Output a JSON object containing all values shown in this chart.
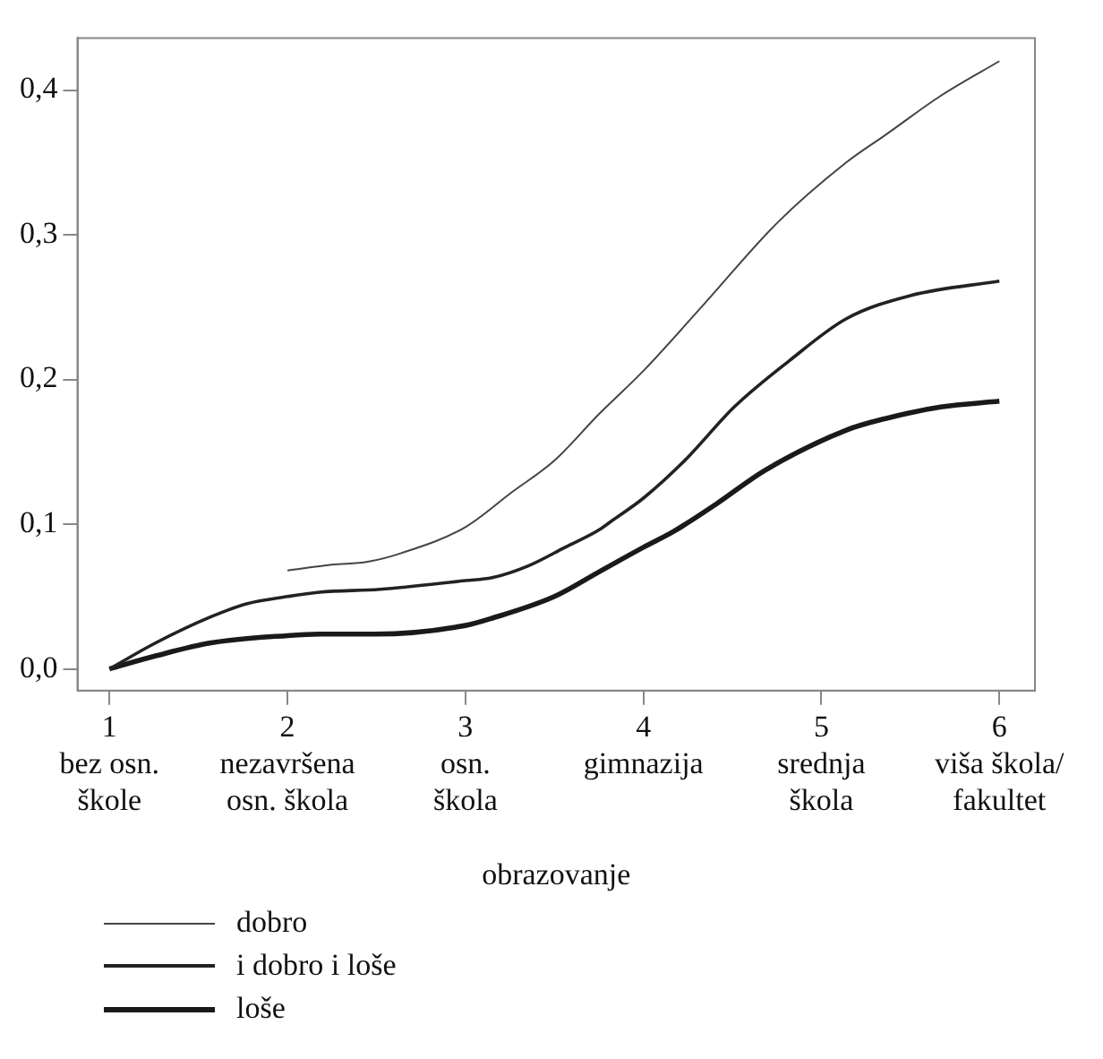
{
  "chart_data": {
    "type": "line",
    "xlabel": "obrazovanje",
    "legend": "bottom left",
    "grid": false,
    "marker": "none",
    "line_style": "solid",
    "xlim": [
      0.82,
      6.2
    ],
    "ylim": [
      -0.015,
      0.436
    ],
    "xticks": [
      {
        "value": 1,
        "label": "1\nbez osn.\nškole"
      },
      {
        "value": 2,
        "label": "2\nnezavršena\nosn. škola"
      },
      {
        "value": 3,
        "label": "3\nosn.\nškola"
      },
      {
        "value": 4,
        "label": "4\ngimnazija"
      },
      {
        "value": 5,
        "label": "5\nsrednja\nškola"
      },
      {
        "value": 6,
        "label": "6\nviša škola/\nfakultet"
      }
    ],
    "yticks": [
      {
        "value": 0,
        "label": "0,0"
      },
      {
        "value": 0.1,
        "label": "0,1"
      },
      {
        "value": 0.2,
        "label": "0,2"
      },
      {
        "value": 0.3,
        "label": "0,3"
      },
      {
        "value": 0.4,
        "label": "0,4"
      }
    ],
    "series": [
      {
        "name": "dobro",
        "color": "#444444",
        "x": [
          2,
          2.25,
          2.45,
          2.64,
          3,
          3.26,
          3.5,
          3.75,
          4,
          4.34,
          4.75,
          5.14,
          5.36,
          5.67,
          6
        ],
        "values": [
          0.068,
          0.072,
          0.074,
          0.08,
          0.098,
          0.122,
          0.144,
          0.176,
          0.206,
          0.252,
          0.308,
          0.35,
          0.369,
          0.396,
          0.42
        ]
      },
      {
        "name": "i dobro i loše",
        "color": "#222222",
        "x": [
          1,
          1.26,
          1.57,
          1.77,
          2,
          2.18,
          2.52,
          3,
          3.15,
          3.35,
          3.56,
          3.75,
          3.83,
          4,
          4.24,
          4.51,
          4.82,
          5.14,
          5.5,
          6
        ],
        "values": [
          0,
          0.018,
          0.036,
          0.045,
          0.05,
          0.053,
          0.055,
          0.061,
          0.063,
          0.071,
          0.084,
          0.096,
          0.103,
          0.118,
          0.145,
          0.181,
          0.213,
          0.242,
          0.258,
          0.268
        ]
      },
      {
        "name": "loše",
        "color": "#1a1a1a",
        "x": [
          1,
          1.26,
          1.57,
          2,
          2.18,
          2.49,
          3,
          3.15,
          3.5,
          3.75,
          4,
          4.17,
          4.41,
          4.68,
          5.14,
          5.36,
          5.67,
          6
        ],
        "values": [
          0,
          0.009,
          0.018,
          0.023,
          0.024,
          0.024,
          0.03,
          0.035,
          0.05,
          0.067,
          0.084,
          0.095,
          0.114,
          0.137,
          0.165,
          0.173,
          0.181,
          0.185
        ]
      }
    ]
  }
}
